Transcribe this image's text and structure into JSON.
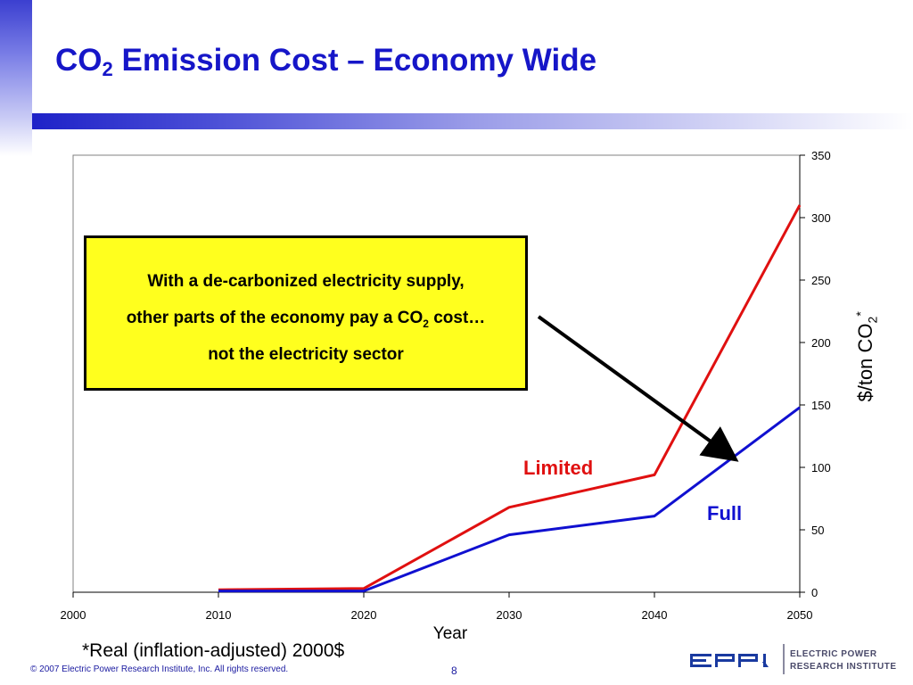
{
  "slide": {
    "title_main": "CO",
    "title_sub": "2",
    "title_rest": " Emission Cost – Economy Wide",
    "footnote": "*Real (inflation-adjusted) 2000$",
    "copyright": "© 2007 Electric Power Research Institute, Inc. All rights reserved.",
    "page_number": "8",
    "logo": {
      "mark": "EPRI",
      "line1": "ELECTRIC POWER",
      "line2": "RESEARCH INSTITUTE"
    }
  },
  "callout": {
    "line1": "With a de-carbonized electricity supply,",
    "line2_a": "other parts of the economy pay a CO",
    "line2_sub": "2",
    "line2_b": " cost…",
    "line3": "not the electricity sector"
  },
  "colors": {
    "title": "#1616c8",
    "limited": "#e01010",
    "full": "#1010d0",
    "callout_bg": "#ffff1e"
  },
  "chart_data": {
    "type": "line",
    "xlabel": "Year",
    "ylabel_main": "$/ton CO",
    "ylabel_sub": "2",
    "ylabel_sup": "*",
    "xlim": [
      2000,
      2050
    ],
    "ylim": [
      0,
      350
    ],
    "x_ticks": [
      2000,
      2010,
      2020,
      2030,
      2040,
      2050
    ],
    "y_ticks": [
      0,
      50,
      100,
      150,
      200,
      250,
      300,
      350
    ],
    "y_axis_side": "right",
    "grid": false,
    "x": [
      2010,
      2020,
      2030,
      2040,
      2050
    ],
    "series": [
      {
        "name": "Limited",
        "values": [
          2,
          3,
          68,
          94,
          310
        ]
      },
      {
        "name": "Full",
        "values": [
          1,
          1,
          46,
          61,
          148
        ]
      }
    ]
  }
}
